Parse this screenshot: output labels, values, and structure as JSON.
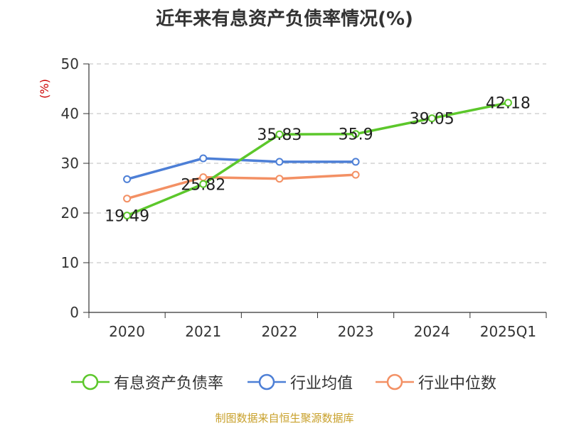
{
  "title": "近年来有息资产负债率情况(%)",
  "source": "制图数据来自恒生聚源数据库",
  "chart_data": {
    "type": "line",
    "title": "近年来有息资产负债率情况(%)",
    "ylabel": "(%)",
    "xlabel": "",
    "ylim": [
      0,
      50
    ],
    "yticks": [
      0,
      10,
      20,
      30,
      40,
      50
    ],
    "grid": true,
    "legend_position": "bottom",
    "categories": [
      "2020",
      "2021",
      "2022",
      "2023",
      "2024",
      "2025Q1"
    ],
    "series": [
      {
        "name": "有息资产负债率",
        "color": "#5cc72b",
        "values": [
          19.49,
          25.82,
          35.83,
          35.9,
          39.05,
          42.18
        ],
        "labels": [
          "19.49",
          "25.82",
          "35.83",
          "35.9",
          "39.05",
          "42.18"
        ]
      },
      {
        "name": "行业均值",
        "color": "#4d7fd6",
        "values": [
          26.8,
          31.0,
          30.3,
          30.3,
          null,
          null
        ]
      },
      {
        "name": "行业中位数",
        "color": "#f39064",
        "values": [
          22.9,
          27.2,
          26.9,
          27.7,
          null,
          null
        ]
      }
    ]
  }
}
